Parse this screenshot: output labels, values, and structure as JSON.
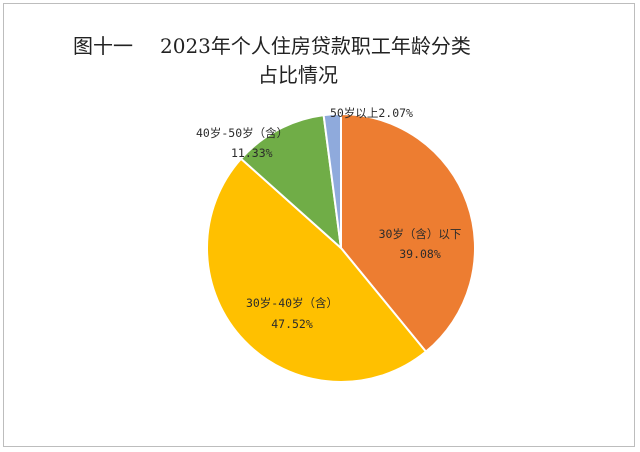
{
  "chart_data": {
    "type": "pie",
    "title_prefix": "图十一",
    "title_line1": "2023年个人住房贷款职工年龄分类",
    "title_line2": "占比情况",
    "slices": [
      {
        "name": "30岁（含）以下",
        "value": 39.08,
        "label": "39.08%",
        "color": "#ed7d31"
      },
      {
        "name": "30岁-40岁（含）",
        "value": 47.52,
        "label": "47.52%",
        "color": "#ffc000"
      },
      {
        "name": "40岁-50岁（含）",
        "value": 11.33,
        "label": "11.33%",
        "color": "#70ad47"
      },
      {
        "name": "50岁以上",
        "value": 2.07,
        "label": "2.07%",
        "color": "#8faadc"
      }
    ]
  }
}
